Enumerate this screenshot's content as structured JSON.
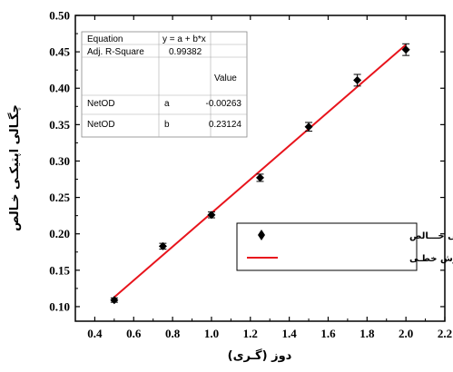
{
  "chart_data": {
    "type": "scatter",
    "xlabel": "دوز (گـری)",
    "ylabel": "چگـالی اپتیکـی خـالص",
    "xlim": [
      0.3,
      2.2
    ],
    "ylim": [
      0.08,
      0.5
    ],
    "x_ticks": [
      "0.4",
      "0.6",
      "0.8",
      "1.0",
      "1.2",
      "1.4",
      "1.6",
      "1.8",
      "2.0",
      "2.2"
    ],
    "y_ticks": [
      "0.10",
      "0.15",
      "0.20",
      "0.25",
      "0.30",
      "0.35",
      "0.40",
      "0.45",
      "0.50"
    ],
    "grid": false,
    "legend_position": "bottom-right",
    "series": [
      {
        "name": "چگـــالی اپتیکـــی خـــالص",
        "kind": "scatter",
        "marker": "diamond",
        "color": "#000000",
        "x": [
          0.5,
          0.75,
          1.0,
          1.25,
          1.5,
          1.75,
          2.0
        ],
        "y": [
          0.109,
          0.183,
          0.226,
          0.277,
          0.347,
          0.411,
          0.453
        ],
        "error": [
          0.003,
          0.004,
          0.004,
          0.005,
          0.006,
          0.008,
          0.008
        ]
      },
      {
        "name": "بـرازش خطـی",
        "kind": "line",
        "color": "#e8141c",
        "x": [
          0.5,
          2.0
        ],
        "y": [
          0.113,
          0.4598
        ]
      }
    ],
    "fit_table": {
      "rows": [
        [
          "Equation",
          "y = a + b*x",
          ""
        ],
        [
          "Adj. R-Square",
          "0.99382",
          ""
        ],
        [
          "",
          "",
          "Value"
        ],
        [
          "NetOD",
          "a",
          "-0.00263"
        ],
        [
          "NetOD",
          "b",
          "0.23124"
        ]
      ]
    }
  }
}
